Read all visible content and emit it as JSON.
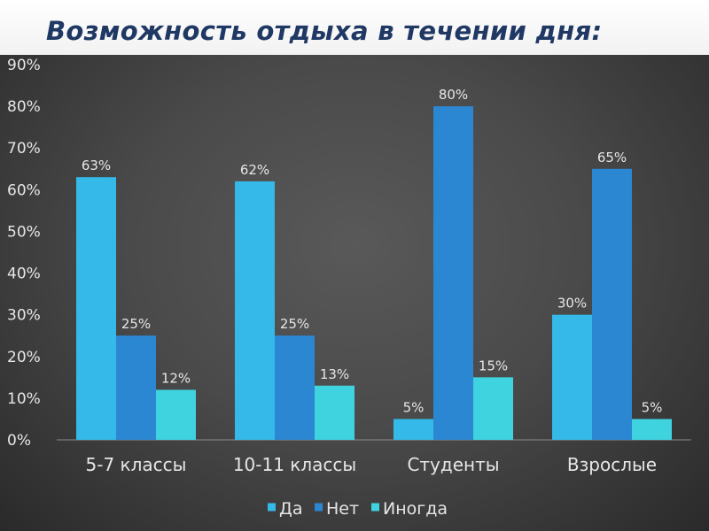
{
  "title": "Возможность отдыха в течении дня:",
  "chart_data": {
    "type": "bar",
    "categories": [
      "5-7 классы",
      "10-11 классы",
      "Студенты",
      "Взрослые"
    ],
    "series": [
      {
        "name": "Да",
        "values": [
          63,
          62,
          5,
          30
        ],
        "labels": [
          "63%",
          "62%",
          "5%",
          "30%"
        ],
        "color": "#35b9e8"
      },
      {
        "name": "Нет",
        "values": [
          25,
          25,
          80,
          65
        ],
        "labels": [
          "25%",
          "25%",
          "80%",
          "65%"
        ],
        "color": "#2c87d3"
      },
      {
        "name": "Иногда",
        "values": [
          12,
          13,
          15,
          5
        ],
        "labels": [
          "12%",
          "13%",
          "15%",
          "5%"
        ],
        "color": "#3fd3e0"
      }
    ],
    "y_ticks": [
      "0%",
      "10%",
      "20%",
      "30%",
      "40%",
      "50%",
      "60%",
      "70%",
      "80%",
      "90%"
    ],
    "ylim": [
      0,
      90
    ],
    "grid": false,
    "legend_position": "bottom",
    "legend": [
      "Да",
      "Нет",
      "Иногда"
    ],
    "colors": {
      "background": "#4a4a4a",
      "text": "#e6e6e6",
      "title": "#1f3864"
    }
  }
}
